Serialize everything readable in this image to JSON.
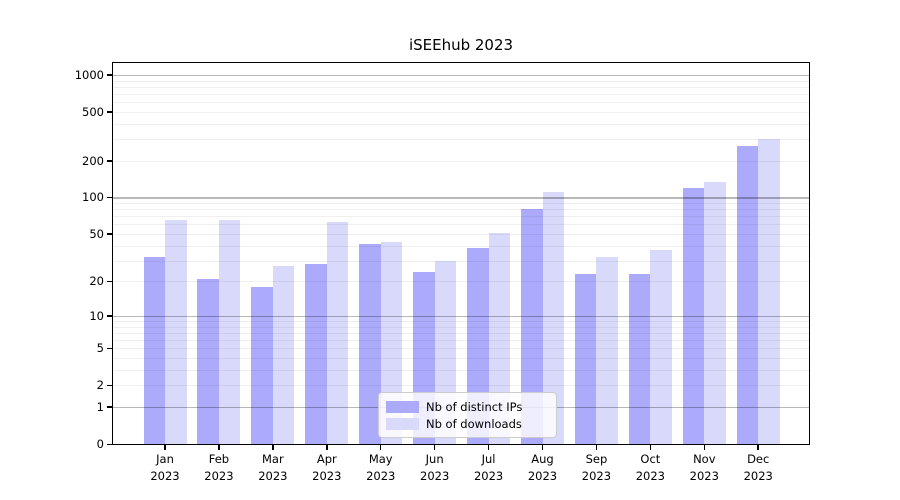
{
  "title": "iSEEhub 2023",
  "chart_data": {
    "type": "bar",
    "title": "iSEEhub 2023",
    "categories": [
      "Jan",
      "Feb",
      "Mar",
      "Apr",
      "May",
      "Jun",
      "Jul",
      "Aug",
      "Sep",
      "Oct",
      "Nov",
      "Dec"
    ],
    "x_year": "2023",
    "series": [
      {
        "name": "Nb of distinct IPs",
        "color": "#abaafb",
        "values": [
          32,
          21,
          18,
          28,
          41,
          24,
          38,
          80,
          23,
          23,
          120,
          265
        ]
      },
      {
        "name": "Nb of downloads",
        "color": "#d9d9fb",
        "values": [
          65,
          65,
          27,
          63,
          43,
          30,
          51,
          110,
          32,
          37,
          135,
          300
        ]
      }
    ],
    "yticks": [
      0,
      1,
      2,
      5,
      10,
      20,
      50,
      100,
      200,
      500,
      1000
    ],
    "yscale": "log1p",
    "ylim": [
      0,
      1270
    ],
    "xlabel": "",
    "ylabel": "",
    "grid": true,
    "grid_over_bars": true,
    "legend_position": "lower-center"
  },
  "colors": {
    "background": "#ffffff",
    "bar_ips": "#abaafb",
    "bar_downloads": "#d9d9fb",
    "major_grid": "#b8b8b8",
    "minor_grid": "#f0f0f0",
    "spine": "#000000",
    "text": "#000000",
    "legend_border": "#cccccc"
  }
}
